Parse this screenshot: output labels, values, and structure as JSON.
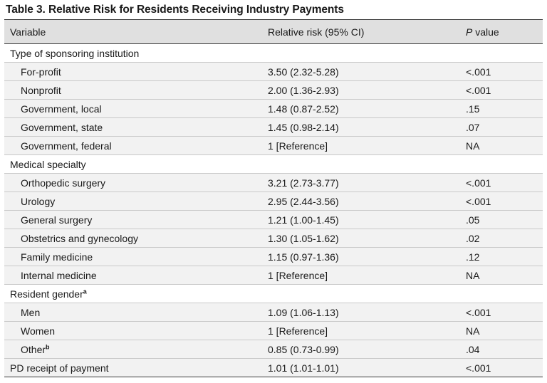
{
  "table": {
    "caption": "Table 3. Relative Risk for Residents Receiving Industry Payments",
    "headers": {
      "variable": "Variable",
      "relative_risk": "Relative risk (95% CI)",
      "p_value_italic": "P",
      "p_value_rest": " value"
    },
    "sections": [
      {
        "label": "Type of sponsoring institution",
        "superscript": "",
        "rows": [
          {
            "variable": "For-profit",
            "sup": "",
            "rr": "3.50 (2.32-5.28)",
            "p": "<.001"
          },
          {
            "variable": "Nonprofit",
            "sup": "",
            "rr": "2.00 (1.36-2.93)",
            "p": "<.001"
          },
          {
            "variable": "Government, local",
            "sup": "",
            "rr": "1.48 (0.87-2.52)",
            "p": ".15"
          },
          {
            "variable": "Government, state",
            "sup": "",
            "rr": "1.45 (0.98-2.14)",
            "p": ".07"
          },
          {
            "variable": "Government, federal",
            "sup": "",
            "rr": "1 [Reference]",
            "p": "NA"
          }
        ]
      },
      {
        "label": "Medical specialty",
        "superscript": "",
        "rows": [
          {
            "variable": "Orthopedic surgery",
            "sup": "",
            "rr": "3.21 (2.73-3.77)",
            "p": "<.001"
          },
          {
            "variable": "Urology",
            "sup": "",
            "rr": "2.95 (2.44-3.56)",
            "p": "<.001"
          },
          {
            "variable": "General surgery",
            "sup": "",
            "rr": "1.21 (1.00-1.45)",
            "p": ".05"
          },
          {
            "variable": "Obstetrics and gynecology",
            "sup": "",
            "rr": "1.30 (1.05-1.62)",
            "p": ".02"
          },
          {
            "variable": "Family medicine",
            "sup": "",
            "rr": "1.15 (0.97-1.36)",
            "p": ".12"
          },
          {
            "variable": "Internal medicine",
            "sup": "",
            "rr": "1 [Reference]",
            "p": "NA"
          }
        ]
      },
      {
        "label": "Resident gender",
        "superscript": "a",
        "rows": [
          {
            "variable": "Men",
            "sup": "",
            "rr": "1.09 (1.06-1.13)",
            "p": "<.001"
          },
          {
            "variable": "Women",
            "sup": "",
            "rr": "1 [Reference]",
            "p": "NA"
          },
          {
            "variable": "Other",
            "sup": "b",
            "rr": "0.85 (0.73-0.99)",
            "p": ".04"
          }
        ]
      }
    ],
    "final_row": {
      "variable": "PD receipt of payment",
      "rr": "1.01 (1.01-1.01)",
      "p": "<.001"
    }
  }
}
